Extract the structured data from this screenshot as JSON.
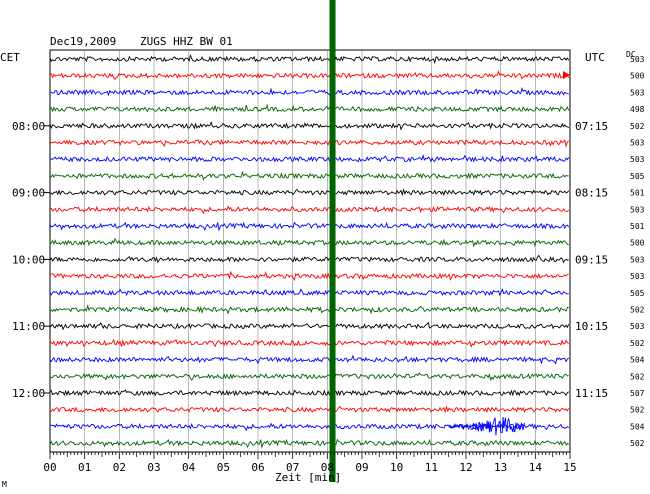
{
  "header": {
    "date": "Dec19,2009",
    "station": "ZUGS HHZ BW 01",
    "left_zone": "CET",
    "right_zone": "UTC",
    "dc_label": "DC"
  },
  "time_labels": {
    "left": [
      "08:00",
      "09:00",
      "10:00",
      "11:00",
      "12:00"
    ],
    "right": [
      "07:15",
      "08:15",
      "09:15",
      "10:15",
      "11:15"
    ]
  },
  "x_axis": {
    "label": "Zeit [min]",
    "ticks": [
      "00",
      "01",
      "02",
      "03",
      "04",
      "05",
      "06",
      "07",
      "08",
      "09",
      "10",
      "11",
      "12",
      "13",
      "14",
      "15"
    ],
    "range": [
      0,
      15
    ]
  },
  "dc_values": [
    "503",
    "500",
    "503",
    "498",
    "502",
    "503",
    "503",
    "505",
    "501",
    "503",
    "501",
    "500",
    "503",
    "503",
    "505",
    "502",
    "503",
    "502",
    "504",
    "502",
    "507",
    "502",
    "504",
    "502"
  ],
  "trace_colors": [
    "#000000",
    "#ff0000",
    "#0000ff",
    "#006400"
  ],
  "marker": {
    "minute": 8.15,
    "color": "#006400"
  },
  "event": {
    "trace_index": 22,
    "start_min": 11.5,
    "end_min": 13.7,
    "peak_min": 13.0
  },
  "footer_mark": "M"
}
